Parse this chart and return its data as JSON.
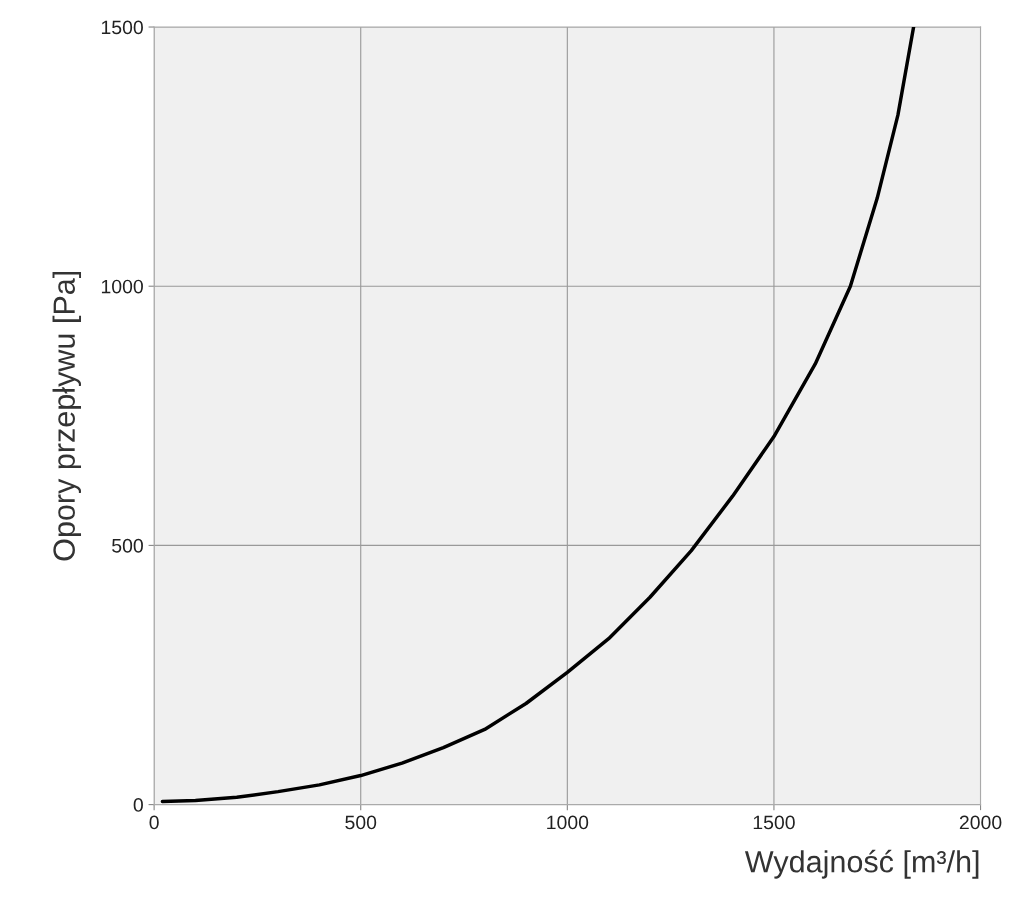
{
  "chart_data": {
    "type": "line",
    "xlabel": "Wydajność [m³/h]",
    "ylabel": "Opory przepływu [Pa]",
    "series": [
      {
        "color": "#000000",
        "x": [
          20,
          100,
          200,
          300,
          400,
          500,
          600,
          700,
          800,
          900,
          1000,
          1100,
          1200,
          1300,
          1400,
          1500,
          1600,
          1685,
          1750,
          1800,
          1838
        ],
        "values": [
          6,
          8,
          14,
          25,
          38,
          56,
          80,
          110,
          145,
          195,
          255,
          320,
          400,
          490,
          595,
          710,
          850,
          1000,
          1170,
          1330,
          1500
        ]
      }
    ],
    "xlim": [
      0,
      2000
    ],
    "ylim": [
      0,
      1500
    ],
    "xticks": [
      0,
      500,
      1000,
      1500,
      2000
    ],
    "yticks": [
      0,
      500,
      1000,
      1500
    ],
    "grid": true,
    "marker": "none",
    "line_style": "solid"
  }
}
